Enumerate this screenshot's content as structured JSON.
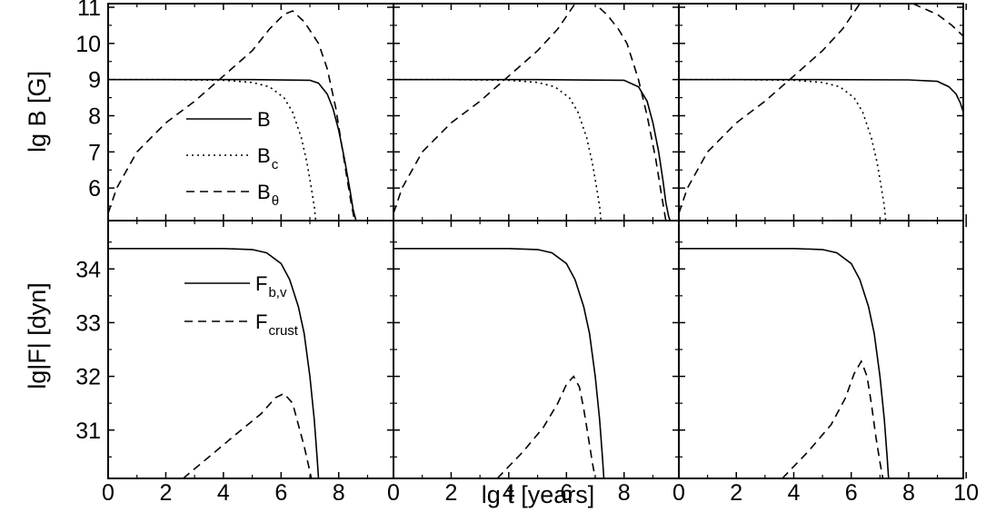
{
  "figure": {
    "xlabel": "lg t [years]",
    "top_ylabel": "lg B [G]",
    "bottom_ylabel": "lg|F|   [dyn]"
  },
  "legend_top": [
    {
      "key": "B",
      "text": "B",
      "sub": ""
    },
    {
      "key": "Bc",
      "text": "B",
      "sub": "c"
    },
    {
      "key": "Btheta",
      "text": "B",
      "sub": "θ"
    }
  ],
  "legend_bottom": [
    {
      "key": "Fbv",
      "text": "F",
      "sub": "b,v"
    },
    {
      "key": "Fcrust",
      "text": "F",
      "sub": "crust"
    }
  ],
  "styles": {
    "B": "solid",
    "Bc": "dotted",
    "Btheta": "dashed",
    "Fbv": "solid",
    "Fcrust": "dashed",
    "line_color": "#000000"
  },
  "chart_data": [
    {
      "type": "line",
      "panel": "top-left",
      "xlim": [
        0,
        9.9
      ],
      "ylim": [
        5.1,
        11.1
      ],
      "x_ticks": [
        0,
        2,
        4,
        6,
        8
      ],
      "x_tick_labels": [
        "0",
        "2",
        "4",
        "6",
        "8"
      ],
      "y_ticks": [
        6,
        7,
        8,
        9,
        10,
        11
      ],
      "y_tick_labels": [
        "6",
        "7",
        "8",
        "9",
        "10",
        "11"
      ],
      "show_y_tick_labels": true,
      "series": [
        {
          "key": "B",
          "x": [
            0,
            5,
            7,
            7.3,
            7.6,
            7.8,
            8,
            8.2,
            8.4,
            8.5,
            8.6
          ],
          "y": [
            9,
            9,
            8.98,
            8.9,
            8.6,
            8.2,
            7.6,
            6.8,
            5.9,
            5.4,
            5.1
          ]
        },
        {
          "key": "Bc",
          "x": [
            0,
            2,
            4,
            5,
            5.6,
            6.1,
            6.4,
            6.7,
            6.9,
            7.05,
            7.15,
            7.2
          ],
          "y": [
            9,
            9,
            8.98,
            8.92,
            8.8,
            8.5,
            8.1,
            7.4,
            6.7,
            6.0,
            5.5,
            5.1
          ]
        },
        {
          "key": "Btheta",
          "x": [
            0,
            0.3,
            1,
            2,
            3,
            4,
            5,
            5.6,
            6.1,
            6.4,
            6.8,
            7.3,
            7.6,
            7.9,
            8.1,
            8.3,
            8.45,
            8.55
          ],
          "y": [
            5.3,
            6.0,
            7.0,
            7.8,
            8.4,
            9.1,
            9.8,
            10.4,
            10.8,
            10.9,
            10.6,
            10.0,
            9.3,
            8.2,
            7.2,
            6.2,
            5.5,
            5.1
          ]
        }
      ]
    },
    {
      "type": "line",
      "panel": "top-middle",
      "xlim": [
        0,
        9.9
      ],
      "ylim": [
        5.1,
        11.1
      ],
      "x_ticks": [
        0,
        2,
        4,
        6,
        8
      ],
      "x_tick_labels": [
        "0",
        "2",
        "4",
        "6",
        "8"
      ],
      "y_ticks": [
        6,
        7,
        8,
        9,
        10,
        11
      ],
      "y_tick_labels": [
        "6",
        "7",
        "8",
        "9",
        "10",
        "11"
      ],
      "show_y_tick_labels": false,
      "series": [
        {
          "key": "B",
          "x": [
            0,
            5,
            8,
            8.5,
            8.8,
            9.0,
            9.2,
            9.35,
            9.45,
            9.55,
            9.6
          ],
          "y": [
            9,
            9,
            8.98,
            8.8,
            8.4,
            7.8,
            7.0,
            6.2,
            5.6,
            5.2,
            5.1
          ]
        },
        {
          "key": "Bc",
          "x": [
            0,
            2,
            4,
            5,
            5.6,
            6.1,
            6.4,
            6.7,
            6.9,
            7.05,
            7.15,
            7.2
          ],
          "y": [
            9,
            9,
            8.98,
            8.92,
            8.8,
            8.5,
            8.1,
            7.4,
            6.7,
            6.0,
            5.5,
            5.1
          ]
        },
        {
          "key": "Btheta",
          "x": [
            0,
            0.3,
            1,
            2,
            3,
            4,
            5,
            5.7,
            6.3,
            6.7,
            7.4,
            7.8,
            8.1,
            8.5,
            8.8,
            9.1,
            9.3,
            9.45
          ],
          "y": [
            5.3,
            6.0,
            7.0,
            7.8,
            8.4,
            9.1,
            9.8,
            10.4,
            11.1,
            11.3,
            10.8,
            10.4,
            10.0,
            9.0,
            8.0,
            6.8,
            5.8,
            5.1
          ]
        }
      ]
    },
    {
      "type": "line",
      "panel": "top-right",
      "xlim": [
        0,
        9.9
      ],
      "ylim": [
        5.1,
        11.1
      ],
      "x_ticks": [
        0,
        2,
        4,
        6,
        8,
        10
      ],
      "x_tick_labels": [
        "0",
        "2",
        "4",
        "6",
        "8",
        "10"
      ],
      "y_ticks": [
        6,
        7,
        8,
        9,
        10,
        11
      ],
      "y_tick_labels": [
        "6",
        "7",
        "8",
        "9",
        "10",
        "11"
      ],
      "show_y_tick_labels": false,
      "series": [
        {
          "key": "B",
          "x": [
            0,
            5,
            8,
            9,
            9.4,
            9.65,
            9.8,
            9.9
          ],
          "y": [
            9,
            9,
            8.99,
            8.95,
            8.8,
            8.6,
            8.35,
            8.1
          ]
        },
        {
          "key": "Bc",
          "x": [
            0,
            2,
            4,
            5,
            5.6,
            6.1,
            6.4,
            6.7,
            6.9,
            7.05,
            7.15,
            7.2
          ],
          "y": [
            9,
            9,
            8.98,
            8.92,
            8.8,
            8.5,
            8.1,
            7.4,
            6.7,
            6.0,
            5.5,
            5.1
          ]
        },
        {
          "key": "Btheta",
          "x": [
            0,
            0.3,
            1,
            2,
            3,
            4,
            5,
            5.7,
            6.3,
            6.7,
            7.3,
            8,
            9,
            9.5,
            9.9
          ],
          "y": [
            5.3,
            6.0,
            7.0,
            7.8,
            8.4,
            9.1,
            9.8,
            10.4,
            11.1,
            11.4,
            11.3,
            11.15,
            10.8,
            10.5,
            10.2
          ]
        }
      ]
    },
    {
      "type": "line",
      "panel": "bottom-left",
      "xlim": [
        0,
        9.9
      ],
      "ylim": [
        30.1,
        34.9
      ],
      "x_ticks": [
        0,
        2,
        4,
        6,
        8
      ],
      "x_tick_labels": [
        "0",
        "2",
        "4",
        "6",
        "8"
      ],
      "y_ticks": [
        31,
        32,
        33,
        34
      ],
      "y_tick_labels": [
        "31",
        "32",
        "33",
        "34"
      ],
      "show_y_tick_labels": true,
      "series": [
        {
          "key": "Fbv",
          "x": [
            0,
            4,
            5,
            5.5,
            6,
            6.3,
            6.6,
            6.8,
            7.0,
            7.15,
            7.25,
            7.3
          ],
          "y": [
            34.38,
            34.38,
            34.36,
            34.3,
            34.1,
            33.8,
            33.3,
            32.8,
            32.0,
            31.2,
            30.5,
            30.1
          ]
        },
        {
          "key": "Fcrust",
          "x": [
            2.6,
            3.5,
            4.5,
            5.3,
            5.8,
            6.1,
            6.4,
            6.6,
            6.8,
            6.95,
            7.05
          ],
          "y": [
            30.1,
            30.5,
            30.95,
            31.3,
            31.6,
            31.68,
            31.5,
            31.1,
            30.7,
            30.35,
            30.1
          ]
        }
      ]
    },
    {
      "type": "line",
      "panel": "bottom-middle",
      "xlim": [
        0,
        9.9
      ],
      "ylim": [
        30.1,
        34.9
      ],
      "x_ticks": [
        0,
        2,
        4,
        6,
        8
      ],
      "x_tick_labels": [
        "0",
        "2",
        "4",
        "6",
        "8"
      ],
      "y_ticks": [
        31,
        32,
        33,
        34
      ],
      "y_tick_labels": [
        "31",
        "32",
        "33",
        "34"
      ],
      "show_y_tick_labels": false,
      "series": [
        {
          "key": "Fbv",
          "x": [
            0,
            4,
            5,
            5.5,
            6,
            6.3,
            6.6,
            6.8,
            7.0,
            7.15,
            7.25,
            7.3
          ],
          "y": [
            34.38,
            34.38,
            34.36,
            34.3,
            34.1,
            33.8,
            33.3,
            32.8,
            32.0,
            31.2,
            30.5,
            30.1
          ]
        },
        {
          "key": "Fcrust",
          "x": [
            3.6,
            4.5,
            5.2,
            5.7,
            6.0,
            6.25,
            6.45,
            6.6,
            6.75,
            6.9,
            7.0
          ],
          "y": [
            30.1,
            30.6,
            31.05,
            31.5,
            31.85,
            32.0,
            31.8,
            31.4,
            30.9,
            30.4,
            30.1
          ]
        }
      ]
    },
    {
      "type": "line",
      "panel": "bottom-right",
      "xlim": [
        0,
        9.9
      ],
      "ylim": [
        30.1,
        34.9
      ],
      "x_ticks": [
        0,
        2,
        4,
        6,
        8,
        10
      ],
      "x_tick_labels": [
        "0",
        "2",
        "4",
        "6",
        "8",
        "10"
      ],
      "y_ticks": [
        31,
        32,
        33,
        34
      ],
      "y_tick_labels": [
        "31",
        "32",
        "33",
        "34"
      ],
      "show_y_tick_labels": false,
      "series": [
        {
          "key": "Fbv",
          "x": [
            0,
            4,
            5,
            5.5,
            6,
            6.3,
            6.6,
            6.8,
            7.0,
            7.15,
            7.25,
            7.3
          ],
          "y": [
            34.38,
            34.38,
            34.36,
            34.3,
            34.1,
            33.8,
            33.3,
            32.8,
            32.0,
            31.2,
            30.5,
            30.1
          ]
        },
        {
          "key": "Fcrust",
          "x": [
            3.6,
            4.5,
            5.3,
            5.8,
            6.1,
            6.35,
            6.55,
            6.7,
            6.85,
            7.0,
            7.1
          ],
          "y": [
            30.1,
            30.6,
            31.1,
            31.6,
            32.05,
            32.28,
            32.0,
            31.5,
            30.9,
            30.4,
            30.1
          ]
        }
      ]
    }
  ]
}
